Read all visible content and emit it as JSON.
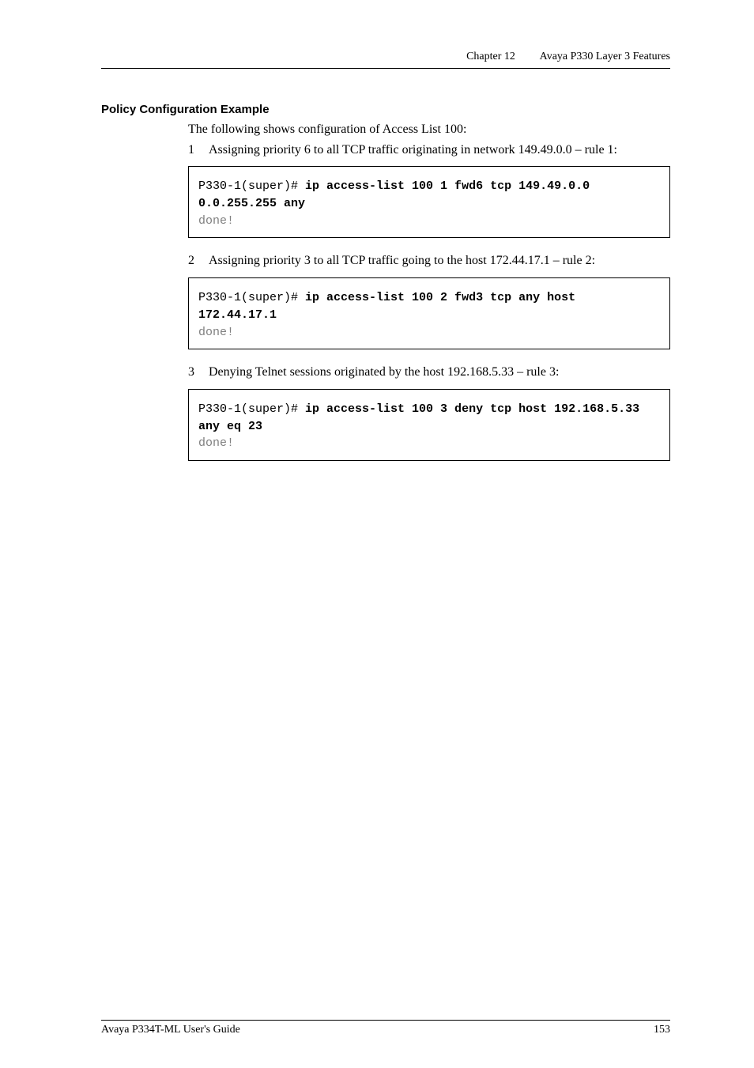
{
  "header": {
    "chapter_label": "Chapter 12",
    "chapter_title": "Avaya P330 Layer 3 Features"
  },
  "section": {
    "title": "Policy Configuration Example",
    "intro": "The following shows configuration of Access List 100:"
  },
  "steps": [
    {
      "num": "1",
      "text": "Assigning priority 6 to all TCP traffic originating in network 149.49.0.0 – rule 1:",
      "code_prompt": "P330-1(super)# ",
      "code_cmd": "ip access-list 100 1 fwd6 tcp 149.49.0.0 0.0.255.255 any",
      "code_done": "done!"
    },
    {
      "num": "2",
      "text": "Assigning priority 3 to all TCP traffic going to the host 172.44.17.1 – rule 2:",
      "code_prompt": "P330-1(super)# ",
      "code_cmd": "ip access-list 100 2 fwd3 tcp any host 172.44.17.1",
      "code_done": "done!"
    },
    {
      "num": "3",
      "text": "Denying Telnet sessions originated by the host 192.168.5.33 – rule 3:",
      "code_prompt": "P330-1(super)# ",
      "code_cmd": "ip access-list 100 3 deny tcp host 192.168.5.33 any eq 23",
      "code_done": "done!"
    }
  ],
  "footer": {
    "guide": "Avaya P334T-ML User's Guide",
    "page": "153"
  }
}
